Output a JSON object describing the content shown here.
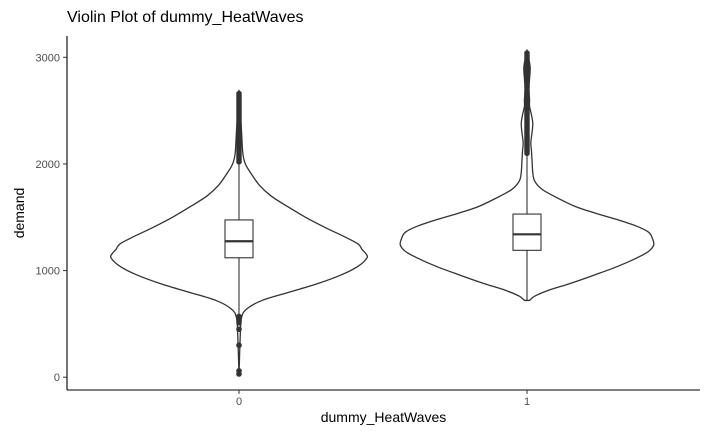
{
  "chart_data": {
    "type": "violin",
    "title": "Violin Plot of dummy_HeatWaves",
    "xlabel": "dummy_HeatWaves",
    "ylabel": "demand",
    "categories": [
      "0",
      "1"
    ],
    "ylim": [
      -120,
      3200
    ],
    "yticks": [
      0,
      1000,
      2000,
      3000
    ],
    "grid": false,
    "legend": "none",
    "groups": [
      {
        "category": "0",
        "min": 20,
        "max": 2670,
        "box": {
          "q1": 1120,
          "median": 1275,
          "q3": 1475,
          "whisker_low": 590,
          "whisker_high": 2010
        },
        "density": [
          [
            20,
            0.0
          ],
          [
            400,
            0.01
          ],
          [
            560,
            0.02
          ],
          [
            640,
            0.06
          ],
          [
            720,
            0.18
          ],
          [
            800,
            0.4
          ],
          [
            880,
            0.62
          ],
          [
            960,
            0.8
          ],
          [
            1040,
            0.93
          ],
          [
            1120,
            1.0
          ],
          [
            1160,
            0.99
          ],
          [
            1200,
            0.96
          ],
          [
            1250,
            0.93
          ],
          [
            1320,
            0.82
          ],
          [
            1400,
            0.68
          ],
          [
            1500,
            0.52
          ],
          [
            1600,
            0.38
          ],
          [
            1700,
            0.25
          ],
          [
            1800,
            0.16
          ],
          [
            1900,
            0.1
          ],
          [
            2000,
            0.05
          ],
          [
            2100,
            0.03
          ],
          [
            2300,
            0.02
          ],
          [
            2500,
            0.01
          ],
          [
            2670,
            0.0
          ]
        ],
        "outliers": [
          30,
          60,
          300,
          450,
          510,
          530,
          550,
          570,
          2020,
          2040,
          2060,
          2080,
          2100,
          2120,
          2140,
          2160,
          2180,
          2200,
          2220,
          2240,
          2260,
          2280,
          2300,
          2320,
          2340,
          2360,
          2380,
          2400,
          2420,
          2440,
          2460,
          2480,
          2500,
          2520,
          2540,
          2560,
          2580,
          2600,
          2620,
          2640,
          2660
        ]
      },
      {
        "category": "1",
        "min": 720,
        "max": 3060,
        "box": {
          "q1": 1190,
          "median": 1340,
          "q3": 1530,
          "whisker_low": 720,
          "whisker_high": 2080
        },
        "density": [
          [
            720,
            0.02
          ],
          [
            760,
            0.06
          ],
          [
            820,
            0.18
          ],
          [
            880,
            0.34
          ],
          [
            960,
            0.53
          ],
          [
            1040,
            0.71
          ],
          [
            1120,
            0.86
          ],
          [
            1180,
            0.95
          ],
          [
            1240,
            0.99
          ],
          [
            1300,
            0.98
          ],
          [
            1360,
            0.95
          ],
          [
            1420,
            0.85
          ],
          [
            1480,
            0.7
          ],
          [
            1540,
            0.53
          ],
          [
            1600,
            0.38
          ],
          [
            1680,
            0.24
          ],
          [
            1760,
            0.12
          ],
          [
            1840,
            0.06
          ],
          [
            1920,
            0.045
          ],
          [
            2020,
            0.04
          ],
          [
            2120,
            0.035
          ],
          [
            2200,
            0.03
          ],
          [
            2300,
            0.04
          ],
          [
            2380,
            0.045
          ],
          [
            2460,
            0.035
          ],
          [
            2540,
            0.02
          ],
          [
            2600,
            0.02
          ],
          [
            2700,
            0.015
          ],
          [
            2800,
            0.02
          ],
          [
            2900,
            0.025
          ],
          [
            2980,
            0.015
          ],
          [
            3060,
            0.0
          ]
        ],
        "outliers": [
          2100,
          2120,
          2140,
          2160,
          2180,
          2200,
          2220,
          2240,
          2260,
          2280,
          2300,
          2320,
          2340,
          2360,
          2380,
          2400,
          2420,
          2440,
          2460,
          2480,
          2500,
          2520,
          2540,
          2560,
          2580,
          2600,
          2620,
          2640,
          2660,
          2680,
          2700,
          2720,
          2740,
          2760,
          2780,
          2800,
          2820,
          2840,
          2860,
          2880,
          2900,
          2920,
          2940,
          2960,
          2980,
          3000,
          3020,
          3040
        ]
      }
    ]
  }
}
